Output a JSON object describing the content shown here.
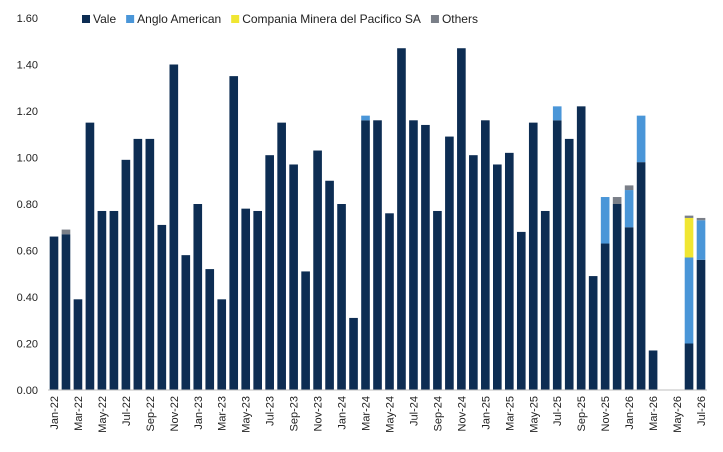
{
  "chart_data": {
    "type": "bar",
    "stacked": true,
    "title": "",
    "xlabel": "",
    "ylabel": "",
    "ylim": [
      0,
      1.6
    ],
    "yticks": [
      "0.00",
      "0.20",
      "0.40",
      "0.60",
      "0.80",
      "1.00",
      "1.20",
      "1.40",
      "1.60"
    ],
    "grid": false,
    "legend_position": "top",
    "categories": [
      "Jan-22",
      "Feb-22",
      "Mar-22",
      "Apr-22",
      "May-22",
      "Jun-22",
      "Jul-22",
      "Aug-22",
      "Sep-22",
      "Oct-22",
      "Nov-22",
      "Dec-22",
      "Jan-23",
      "Feb-23",
      "Mar-23",
      "Apr-23",
      "May-23",
      "Jun-23",
      "Jul-23",
      "Aug-23",
      "Sep-23",
      "Oct-23",
      "Nov-23",
      "Dec-23",
      "Jan-24",
      "Feb-24",
      "Mar-24",
      "Apr-24",
      "May-24",
      "Jun-24",
      "Jul-24",
      "Aug-24",
      "Sep-24",
      "Oct-24",
      "Nov-24",
      "Dec-24",
      "Jan-25",
      "Feb-25",
      "Mar-25",
      "Apr-25",
      "May-25",
      "Jun-25",
      "Jul-25",
      "Aug-25",
      "Sep-25",
      "Oct-25",
      "Nov-25",
      "Dec-25",
      "Jan-26",
      "Feb-26",
      "Mar-26",
      "Apr-26",
      "May-26",
      "Jun-26",
      "Jul-26"
    ],
    "x_tick_labels": [
      "Jan-22",
      "Mar-22",
      "May-22",
      "Jul-22",
      "Sep-22",
      "Nov-22",
      "Jan-23",
      "Mar-23",
      "May-23",
      "Jul-23",
      "Sep-23",
      "Nov-23",
      "Jan-24",
      "Mar-24",
      "May-24",
      "Jul-24",
      "Sep-24",
      "Nov-24",
      "Jan-25",
      "Mar-25",
      "May-25",
      "Jul-25",
      "Sep-25",
      "Nov-25",
      "Jan-26",
      "Mar-26",
      "May-26",
      "Jul-26"
    ],
    "series": [
      {
        "name": "Vale",
        "color": "#0d2d53",
        "values": [
          0.66,
          0.67,
          0.39,
          1.15,
          0.77,
          0.77,
          0.99,
          1.08,
          1.08,
          0.71,
          1.4,
          0.58,
          0.8,
          0.52,
          0.39,
          1.35,
          0.78,
          0.77,
          1.01,
          1.15,
          0.97,
          0.51,
          1.03,
          0.9,
          0.8,
          0.31,
          1.16,
          1.16,
          0.76,
          1.47,
          1.16,
          1.14,
          0.77,
          1.09,
          1.47,
          1.01,
          1.16,
          0.97,
          1.02,
          0.68,
          1.15,
          0.77,
          1.16,
          1.08,
          1.22,
          0.49,
          0.63,
          0.8,
          0.7,
          0.98,
          0.17,
          0,
          0,
          0.2,
          0.56
        ]
      },
      {
        "name": "Anglo American",
        "color": "#4a96d8",
        "values": [
          0,
          0,
          0,
          0,
          0,
          0,
          0,
          0,
          0,
          0,
          0,
          0,
          0,
          0,
          0,
          0,
          0,
          0,
          0,
          0,
          0,
          0,
          0,
          0,
          0,
          0,
          0.02,
          0,
          0,
          0,
          0,
          0,
          0,
          0,
          0,
          0,
          0,
          0,
          0,
          0,
          0,
          0,
          0.06,
          0,
          0,
          0,
          0.2,
          0,
          0.16,
          0.2,
          0,
          0,
          0,
          0.37,
          0.17
        ]
      },
      {
        "name": "Compania Minera del Pacifico SA",
        "color": "#f0e632",
        "values": [
          0,
          0,
          0,
          0,
          0,
          0,
          0,
          0,
          0,
          0,
          0,
          0,
          0,
          0,
          0,
          0,
          0,
          0,
          0,
          0,
          0,
          0,
          0,
          0,
          0,
          0,
          0,
          0,
          0,
          0,
          0,
          0,
          0,
          0,
          0,
          0,
          0,
          0,
          0,
          0,
          0,
          0,
          0,
          0,
          0,
          0,
          0,
          0,
          0,
          0,
          0,
          0,
          0,
          0.17,
          0
        ]
      },
      {
        "name": "Others",
        "color": "#7a7f88",
        "values": [
          0,
          0.02,
          0,
          0,
          0,
          0,
          0,
          0,
          0,
          0,
          0,
          0,
          0,
          0,
          0,
          0,
          0,
          0,
          0,
          0,
          0,
          0,
          0,
          0,
          0,
          0,
          0,
          0,
          0,
          0,
          0,
          0,
          0,
          0,
          0,
          0,
          0,
          0,
          0,
          0,
          0,
          0,
          0,
          0,
          0,
          0,
          0,
          0.03,
          0.02,
          0,
          0,
          0,
          0,
          0.01,
          0.01
        ]
      }
    ]
  }
}
